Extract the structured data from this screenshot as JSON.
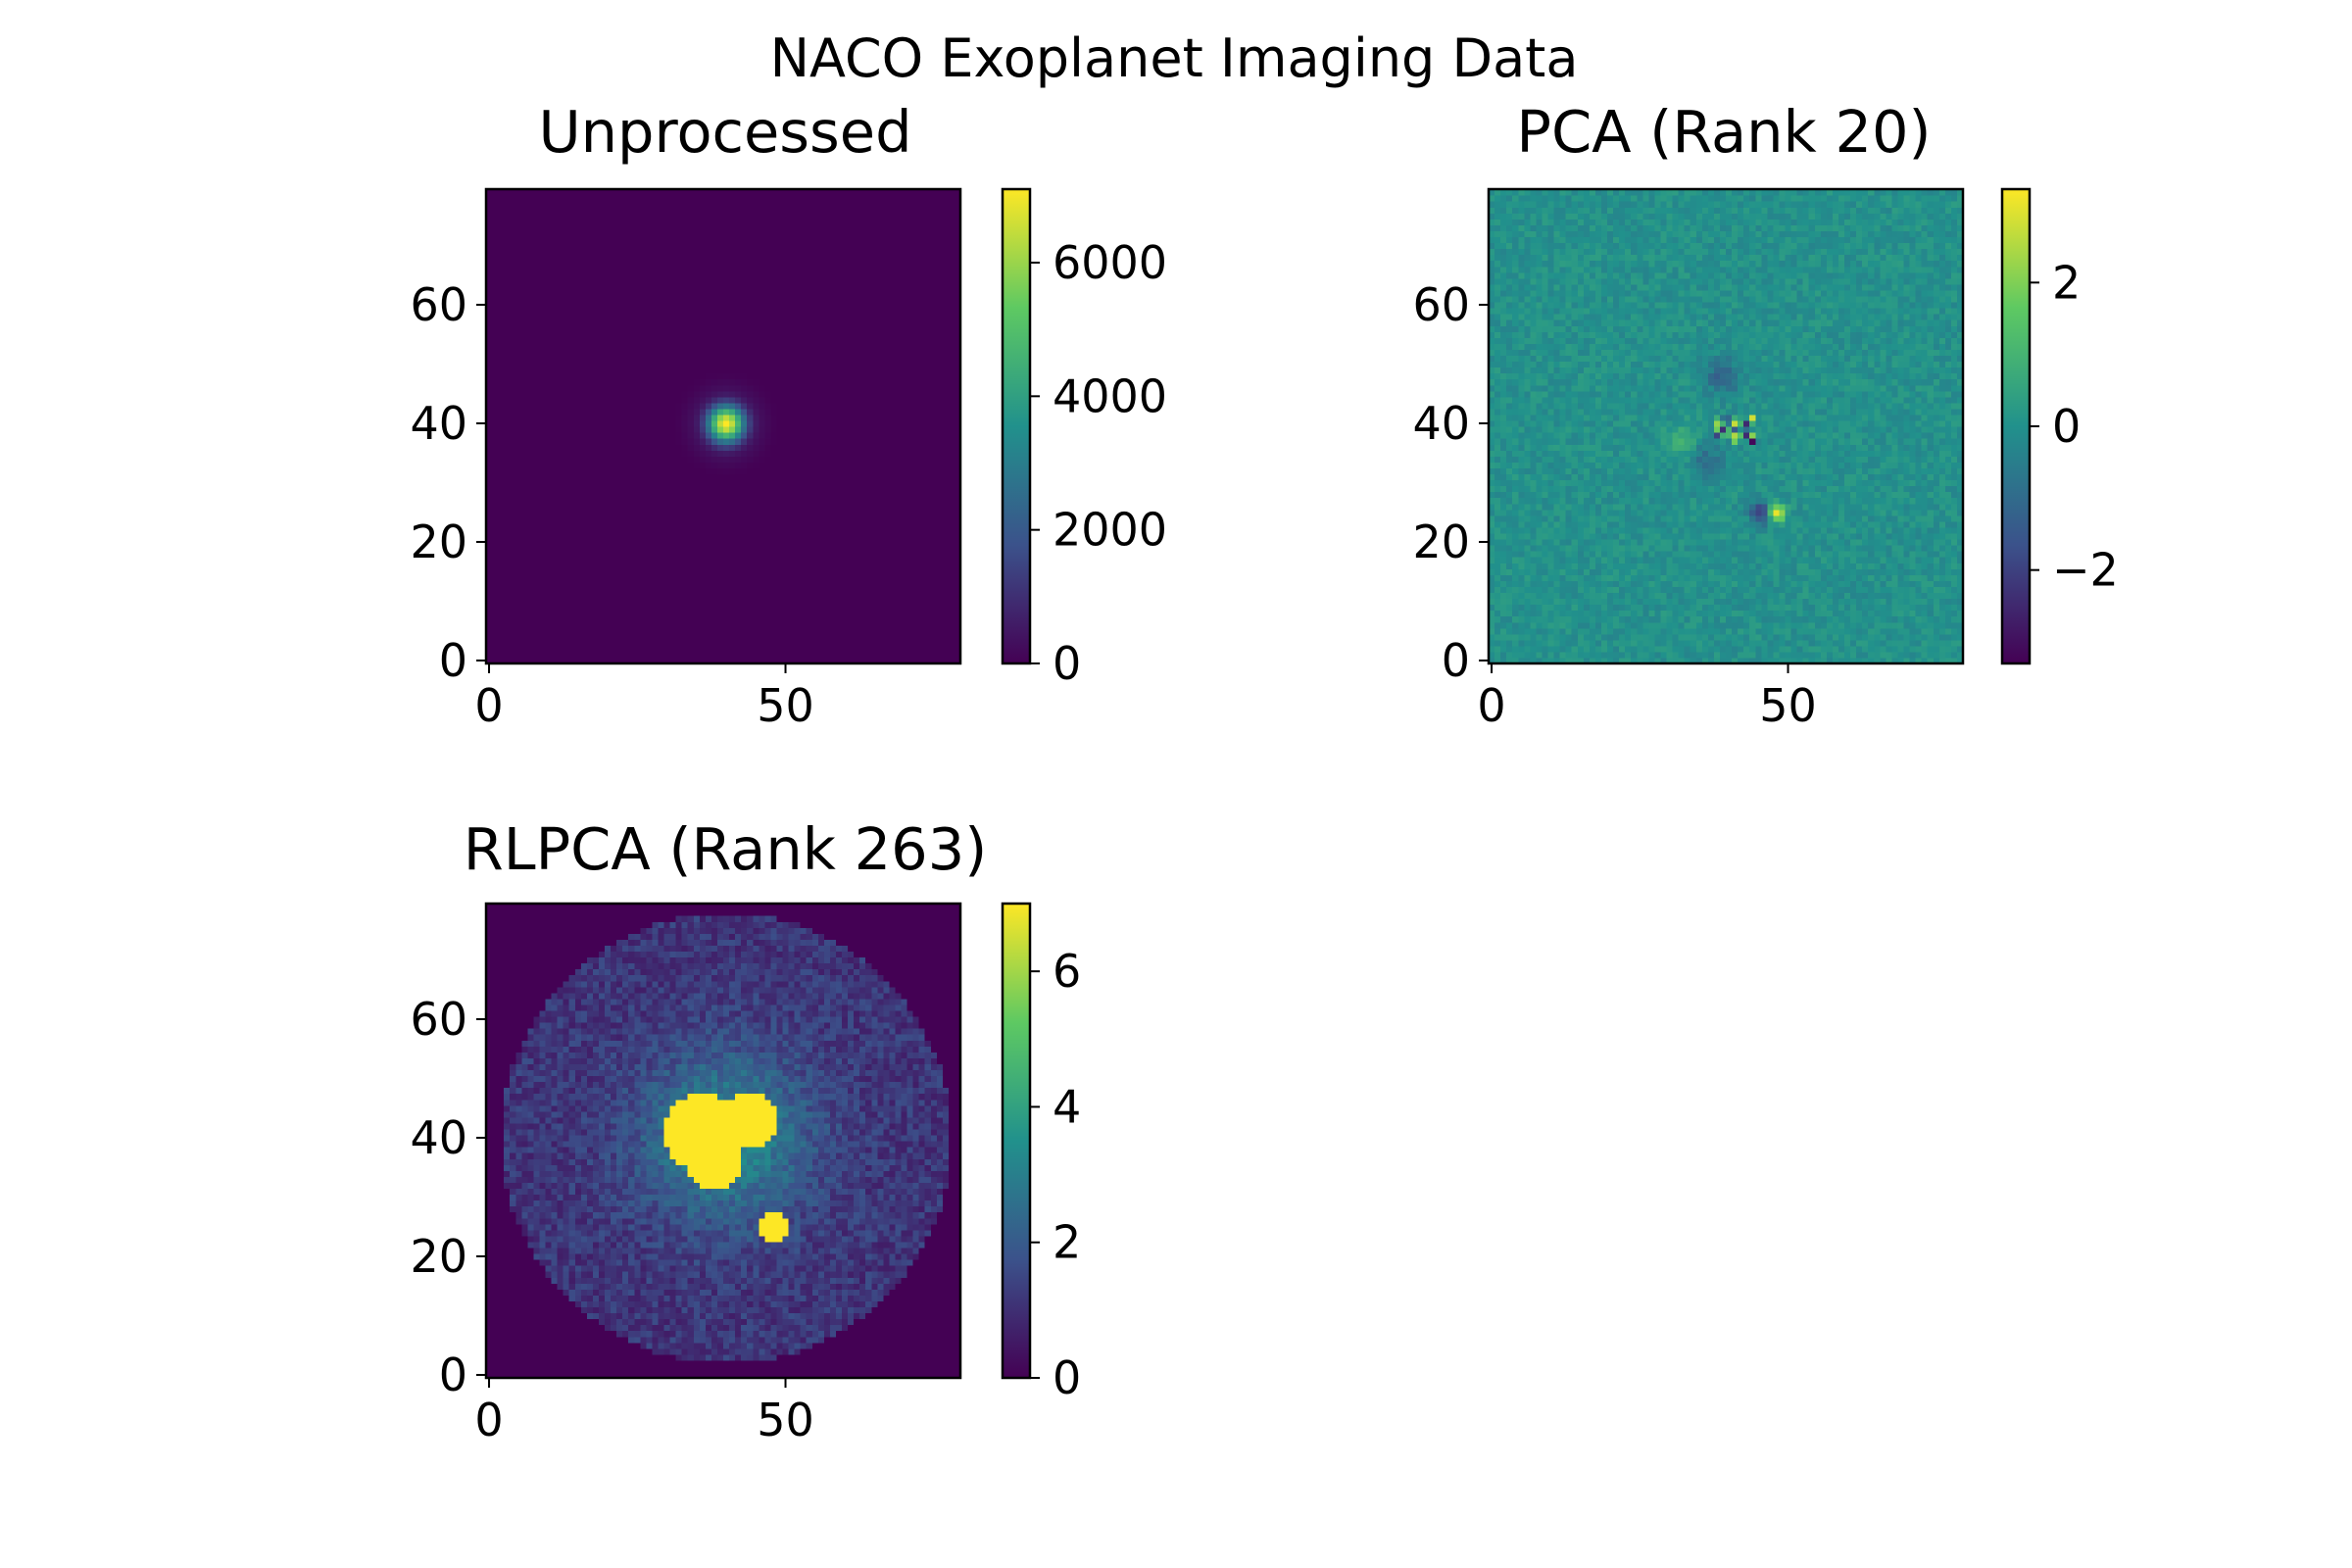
{
  "figure": {
    "suptitle": "NACO Exoplanet Imaging Data"
  },
  "colormap": {
    "name": "viridis",
    "stops": [
      "#440154",
      "#3b528b",
      "#21918c",
      "#5ec962",
      "#fde725"
    ]
  },
  "chart_data": [
    {
      "type": "heatmap",
      "title": "Unprocessed",
      "image_extent": [
        0,
        79
      ],
      "xticks": [
        0,
        50
      ],
      "yticks": [
        0,
        20,
        40,
        60
      ],
      "colorbar": {
        "range": [
          0,
          7100
        ],
        "ticks": [
          0,
          2000,
          4000,
          6000
        ],
        "tick_labels": [
          "0",
          "2000",
          "4000",
          "6000"
        ]
      },
      "features": [
        {
          "kind": "star",
          "x": 40,
          "y": 40,
          "peak": 7100,
          "core_radius": 2.2,
          "ring_radius": 6.5,
          "ring_level": 120
        }
      ]
    },
    {
      "type": "heatmap",
      "title": "PCA (Rank 20)",
      "image_extent": [
        0,
        79
      ],
      "xticks": [
        0,
        50
      ],
      "yticks": [
        0,
        20,
        40,
        60
      ],
      "colorbar": {
        "range": [
          -3.3,
          3.3
        ],
        "ticks": [
          -2,
          0,
          2
        ],
        "tick_labels": [
          "−2",
          "0",
          "2"
        ]
      },
      "features": [
        {
          "kind": "speckles",
          "x": 41,
          "y": 39
        },
        {
          "kind": "planet",
          "x": 48,
          "y": 25,
          "peak": 3.3,
          "negative_offset": [
            -2.5,
            0
          ],
          "negative_peak": -2.5
        },
        {
          "kind": "dark_lobe",
          "x": 39,
          "y": 48,
          "value": -1.2
        },
        {
          "kind": "dark_lobe",
          "x": 36,
          "y": 34,
          "value": -0.9
        },
        {
          "kind": "bright_lobe",
          "x": 32,
          "y": 37,
          "value": 0.9
        }
      ]
    },
    {
      "type": "heatmap",
      "title": "RLPCA (Rank 263)",
      "image_extent": [
        0,
        79
      ],
      "xticks": [
        0,
        50
      ],
      "yticks": [
        0,
        20,
        40,
        60
      ],
      "colorbar": {
        "range": [
          0,
          7
        ],
        "ticks": [
          0,
          2,
          4,
          6
        ],
        "tick_labels": [
          "0",
          "2",
          "4",
          "6"
        ]
      },
      "features": [
        {
          "kind": "disk_noise",
          "x": 40,
          "y": 40,
          "radius": 38,
          "level": 1.2
        },
        {
          "kind": "saturated_blob",
          "x": 36,
          "y": 41,
          "radius": 6.5
        },
        {
          "kind": "saturated_blob",
          "x": 44,
          "y": 43,
          "radius": 4.5
        },
        {
          "kind": "saturated_blob",
          "x": 38,
          "y": 36,
          "radius": 4.5
        },
        {
          "kind": "saturated_blob",
          "x": 48,
          "y": 25,
          "radius": 2.8
        },
        {
          "kind": "halo",
          "x": 40,
          "y": 40,
          "radius": 14,
          "level": 2.2
        }
      ]
    }
  ]
}
